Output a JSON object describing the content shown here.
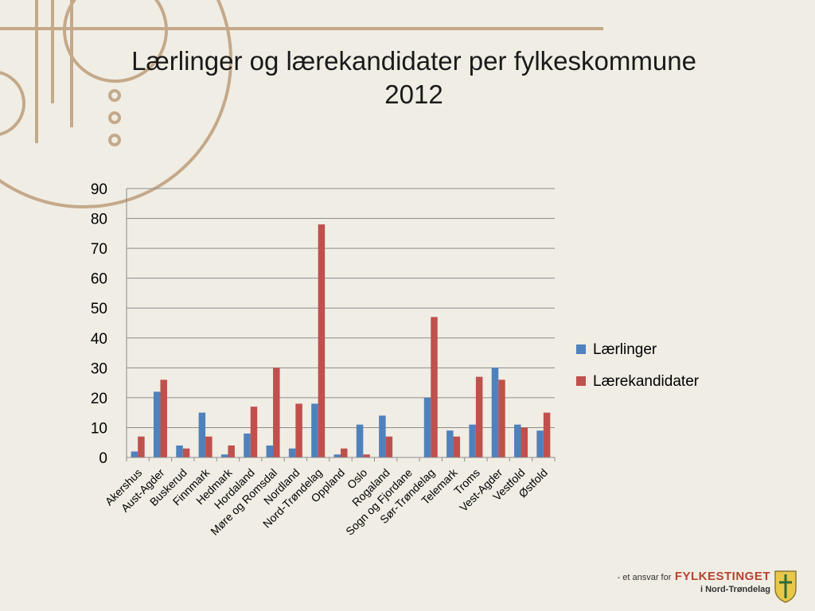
{
  "slide": {
    "title_line1": "Lærlinger og lærekandidater per fylkeskommune",
    "title_line2": "2012"
  },
  "footer": {
    "prefix": "- et ansvar for",
    "brand": "FYLKESTINGET",
    "sub": "i Nord-Trøndelag"
  },
  "colors": {
    "background": "#f0ede4",
    "decor": "#c4a98a",
    "laerlinger": "#4f81bd",
    "laerekandidater": "#c0504d"
  },
  "chart_data": {
    "type": "bar",
    "title": "",
    "xlabel": "",
    "ylabel": "",
    "ylim": [
      0,
      90
    ],
    "yticks": [
      0,
      10,
      20,
      30,
      40,
      50,
      60,
      70,
      80,
      90
    ],
    "grid": true,
    "legend_position": "right",
    "categories": [
      "Akershus",
      "Aust-Agder",
      "Buskerud",
      "Finnmark",
      "Hedmark",
      "Hordaland",
      "Møre og Romsdal",
      "Nordland",
      "Nord-Trøndelag",
      "Oppland",
      "Oslo",
      "Rogaland",
      "Sogn og Fjordane",
      "Sør-Trøndelag",
      "Telemark",
      "Troms",
      "Vest-Agder",
      "Vestfold",
      "Østfold"
    ],
    "series": [
      {
        "name": "Lærlinger",
        "color": "#4f81bd",
        "values": [
          2,
          22,
          4,
          15,
          1,
          8,
          4,
          3,
          18,
          1,
          11,
          14,
          0,
          20,
          9,
          11,
          30,
          11,
          9
        ]
      },
      {
        "name": "Lærekandidater",
        "color": "#c0504d",
        "values": [
          7,
          26,
          3,
          7,
          4,
          17,
          30,
          18,
          78,
          3,
          1,
          7,
          0,
          47,
          7,
          27,
          26,
          10,
          15
        ]
      }
    ]
  }
}
